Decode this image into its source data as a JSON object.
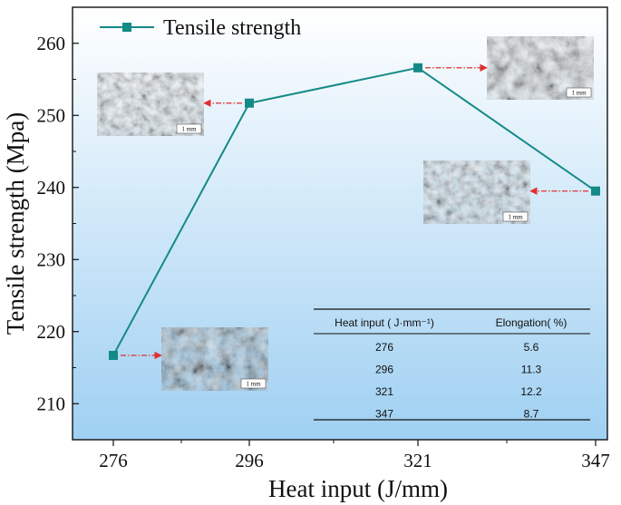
{
  "chart_data": {
    "type": "line",
    "xlabel": "Heat input (J/mm)",
    "ylabel": "Tensile strength (Mpa)",
    "categories": [
      "276",
      "296",
      "321",
      "347"
    ],
    "ylim": [
      205,
      265
    ],
    "yticks": [
      210,
      220,
      230,
      240,
      250,
      260
    ],
    "series": [
      {
        "name": "Tensile strength",
        "values": [
          216.7,
          251.7,
          256.6,
          239.5
        ],
        "color": "#148a86"
      }
    ],
    "legend_position": "top-left",
    "grid": false,
    "background_gradient": [
      "#ffffff",
      "#9fd0f2"
    ],
    "arrow_color": "#e03030",
    "insets": [
      {
        "category": "276",
        "scale_label": "1 mm",
        "side": "right"
      },
      {
        "category": "296",
        "scale_label": "1 mm",
        "side": "left"
      },
      {
        "category": "321",
        "scale_label": "1 mm",
        "side": "right"
      },
      {
        "category": "347",
        "scale_label": "1 mm",
        "side": "left"
      }
    ],
    "table": {
      "headers": [
        "Heat input ( J·mm⁻¹)",
        "Elongation( %)"
      ],
      "rows": [
        [
          "276",
          "5.6"
        ],
        [
          "296",
          "11.3"
        ],
        [
          "321",
          "12.2"
        ],
        [
          "347",
          "8.7"
        ]
      ]
    }
  }
}
